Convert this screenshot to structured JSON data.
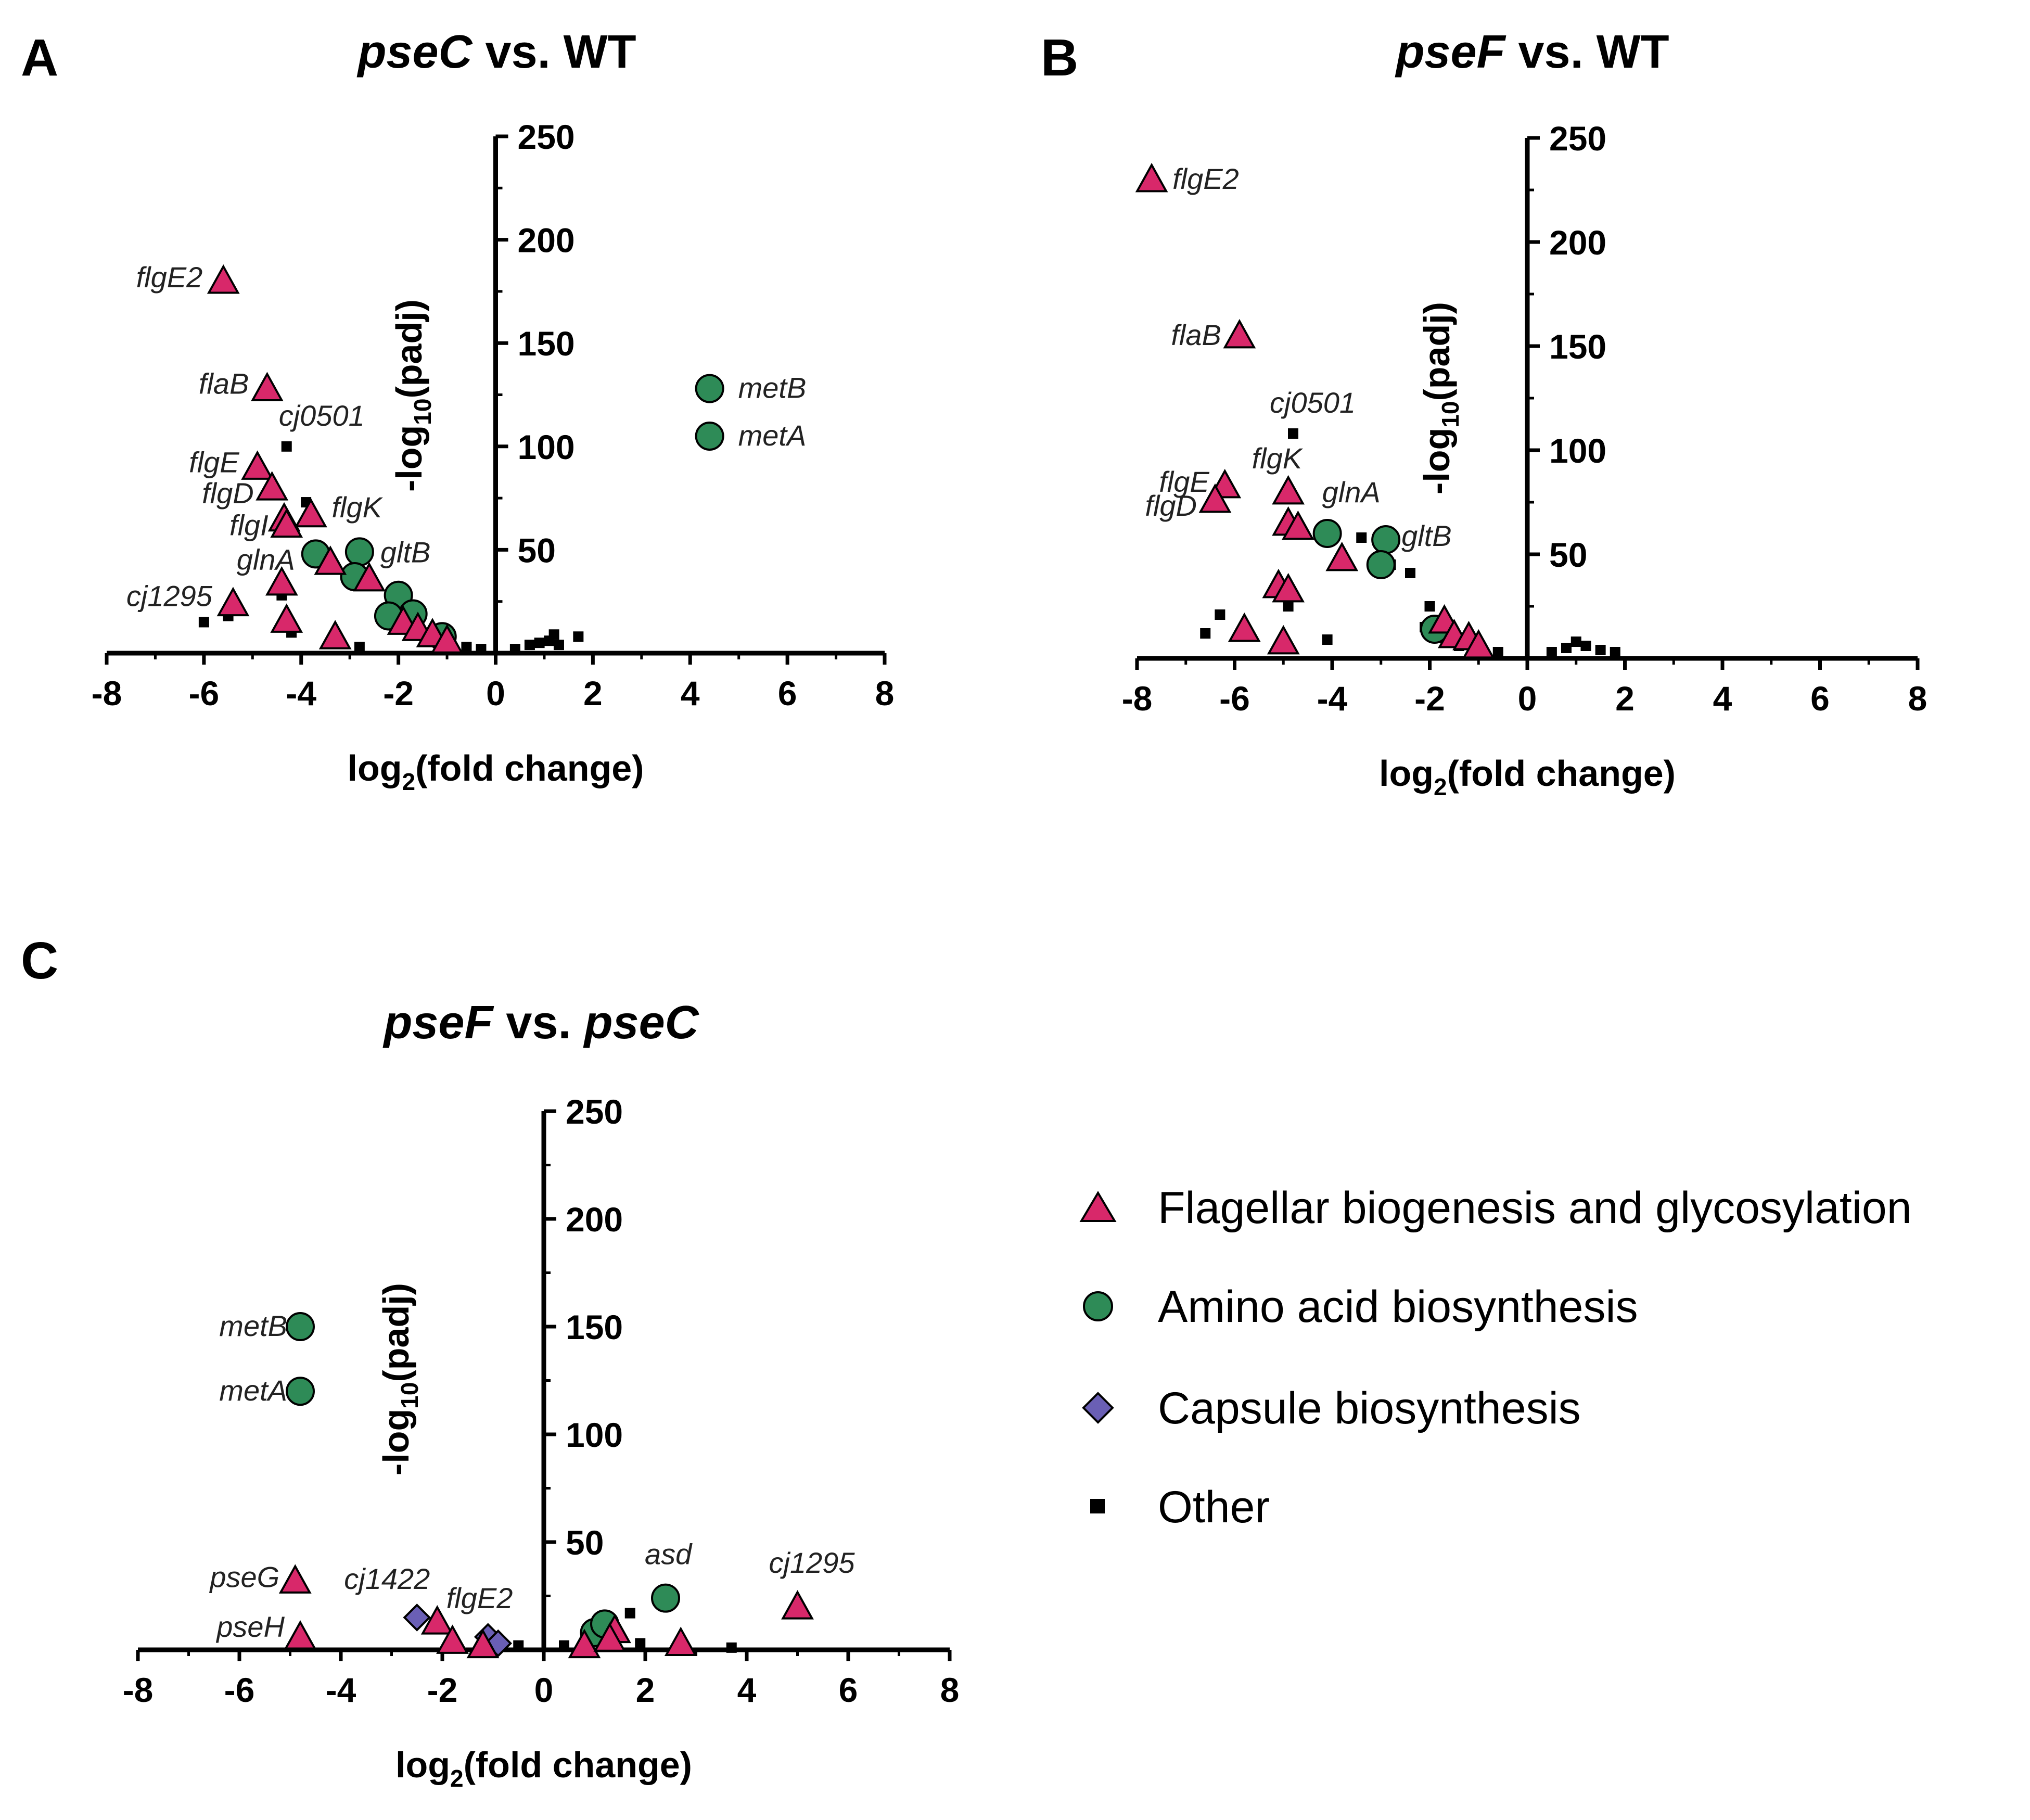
{
  "colors": {
    "flagellar": "#d8286a",
    "amino_acid": "#2e8b57",
    "capsule": "#6a5fb5",
    "other": "#000000"
  },
  "legend": {
    "items": [
      {
        "key": "flagellar",
        "label": "Flagellar biogenesis and glycosylation",
        "marker": "triangle"
      },
      {
        "key": "amino_acid",
        "label": "Amino acid biosynthesis",
        "marker": "circle"
      },
      {
        "key": "capsule",
        "label": "Capsule biosynthesis",
        "marker": "diamond"
      },
      {
        "key": "other",
        "label": "Other",
        "marker": "square"
      }
    ]
  },
  "chart_data": [
    {
      "type": "scatter",
      "panel": "A",
      "title_italic": "pseC",
      "title_rest": " vs. WT",
      "xlabel_main": "log",
      "xlabel_sub": "2",
      "xlabel_tail": "(fold change)",
      "ylabel_main": "-log",
      "ylabel_sub": "10",
      "ylabel_tail": "(padj)",
      "xlim": [
        -8,
        8
      ],
      "ylim": [
        0,
        250
      ],
      "xticks": [
        -8,
        -6,
        -4,
        -2,
        0,
        2,
        4,
        6,
        8
      ],
      "yticks": [
        50,
        100,
        150,
        200,
        250
      ],
      "points": [
        {
          "x": -5.6,
          "y": 180,
          "cat": "flagellar",
          "label": "flgE2"
        },
        {
          "x": -4.7,
          "y": 128,
          "cat": "flagellar",
          "label": "flaB"
        },
        {
          "x": -4.3,
          "y": 100,
          "cat": "other",
          "label": "cj0501"
        },
        {
          "x": -4.9,
          "y": 90,
          "cat": "flagellar",
          "label": "flgE"
        },
        {
          "x": -4.6,
          "y": 80,
          "cat": "flagellar",
          "label": "flgD"
        },
        {
          "x": -4.35,
          "y": 65,
          "cat": "flagellar"
        },
        {
          "x": -4.3,
          "y": 62,
          "cat": "flagellar",
          "label": "flgI"
        },
        {
          "x": -3.8,
          "y": 67,
          "cat": "flagellar",
          "label": "flgK"
        },
        {
          "x": -3.7,
          "y": 48,
          "cat": "amino_acid",
          "label": "glnA"
        },
        {
          "x": -3.4,
          "y": 44,
          "cat": "flagellar"
        },
        {
          "x": -2.8,
          "y": 49,
          "cat": "amino_acid",
          "label": "gltB"
        },
        {
          "x": -2.9,
          "y": 37,
          "cat": "amino_acid"
        },
        {
          "x": -2.6,
          "y": 36,
          "cat": "flagellar"
        },
        {
          "x": -2.0,
          "y": 28,
          "cat": "amino_acid"
        },
        {
          "x": -1.7,
          "y": 19,
          "cat": "amino_acid"
        },
        {
          "x": -2.2,
          "y": 18,
          "cat": "amino_acid"
        },
        {
          "x": -1.9,
          "y": 15,
          "cat": "flagellar"
        },
        {
          "x": -1.6,
          "y": 12,
          "cat": "flagellar"
        },
        {
          "x": -1.3,
          "y": 9,
          "cat": "flagellar"
        },
        {
          "x": -1.1,
          "y": 8,
          "cat": "amino_acid"
        },
        {
          "x": -1.0,
          "y": 6,
          "cat": "flagellar"
        },
        {
          "x": -5.4,
          "y": 24,
          "cat": "flagellar",
          "label": "cj1295"
        },
        {
          "x": -4.4,
          "y": 34,
          "cat": "flagellar"
        },
        {
          "x": -4.3,
          "y": 16,
          "cat": "flagellar"
        },
        {
          "x": -3.3,
          "y": 8,
          "cat": "flagellar"
        },
        {
          "x": -6.0,
          "y": 15,
          "cat": "other"
        },
        {
          "x": -5.5,
          "y": 18,
          "cat": "other"
        },
        {
          "x": -4.4,
          "y": 28,
          "cat": "other"
        },
        {
          "x": -4.2,
          "y": 10,
          "cat": "other"
        },
        {
          "x": -3.9,
          "y": 73,
          "cat": "other"
        },
        {
          "x": -2.8,
          "y": 3,
          "cat": "other"
        },
        {
          "x": -0.6,
          "y": 3,
          "cat": "other"
        },
        {
          "x": -0.3,
          "y": 2,
          "cat": "other"
        },
        {
          "x": 0.4,
          "y": 2,
          "cat": "other"
        },
        {
          "x": 0.7,
          "y": 4,
          "cat": "other"
        },
        {
          "x": 0.9,
          "y": 5,
          "cat": "other"
        },
        {
          "x": 1.1,
          "y": 6,
          "cat": "other"
        },
        {
          "x": 1.2,
          "y": 9,
          "cat": "other"
        },
        {
          "x": 1.3,
          "y": 4,
          "cat": "other"
        },
        {
          "x": 1.7,
          "y": 8,
          "cat": "other"
        },
        {
          "x": 4.4,
          "y": 128,
          "cat": "amino_acid",
          "label": "metB"
        },
        {
          "x": 4.4,
          "y": 105,
          "cat": "amino_acid",
          "label": "metA"
        }
      ]
    },
    {
      "type": "scatter",
      "panel": "B",
      "title_italic": "pseF",
      "title_rest": " vs. WT",
      "xlabel_main": "log",
      "xlabel_sub": "2",
      "xlabel_tail": "(fold change)",
      "ylabel_main": "-log",
      "ylabel_sub": "10",
      "ylabel_tail": "(padj)",
      "xlim": [
        -8,
        8
      ],
      "ylim": [
        0,
        250
      ],
      "xticks": [
        -8,
        -6,
        -4,
        -2,
        0,
        2,
        4,
        6,
        8
      ],
      "yticks": [
        50,
        100,
        150,
        200,
        250
      ],
      "points": [
        {
          "x": -7.7,
          "y": 230,
          "cat": "flagellar",
          "label": "flgE2"
        },
        {
          "x": -5.9,
          "y": 155,
          "cat": "flagellar",
          "label": "flaB"
        },
        {
          "x": -4.8,
          "y": 108,
          "cat": "other",
          "label": "cj0501"
        },
        {
          "x": -6.2,
          "y": 83,
          "cat": "flagellar",
          "label": "flgE"
        },
        {
          "x": -6.4,
          "y": 76,
          "cat": "flagellar",
          "label": "flgD"
        },
        {
          "x": -4.9,
          "y": 80,
          "cat": "flagellar",
          "label": "flgK"
        },
        {
          "x": -4.9,
          "y": 65,
          "cat": "flagellar"
        },
        {
          "x": -4.7,
          "y": 63,
          "cat": "flagellar"
        },
        {
          "x": -4.1,
          "y": 60,
          "cat": "amino_acid",
          "label": "glnA"
        },
        {
          "x": -3.8,
          "y": 48,
          "cat": "flagellar"
        },
        {
          "x": -2.9,
          "y": 57,
          "cat": "amino_acid",
          "label": "gltB"
        },
        {
          "x": -3.0,
          "y": 45,
          "cat": "amino_acid"
        },
        {
          "x": -5.1,
          "y": 35,
          "cat": "flagellar"
        },
        {
          "x": -4.9,
          "y": 33,
          "cat": "flagellar"
        },
        {
          "x": -5.8,
          "y": 14,
          "cat": "flagellar"
        },
        {
          "x": -5.0,
          "y": 8,
          "cat": "flagellar"
        },
        {
          "x": -6.6,
          "y": 12,
          "cat": "other"
        },
        {
          "x": -6.3,
          "y": 21,
          "cat": "other"
        },
        {
          "x": -4.9,
          "y": 25,
          "cat": "other"
        },
        {
          "x": -4.1,
          "y": 9,
          "cat": "other"
        },
        {
          "x": -3.4,
          "y": 58,
          "cat": "other"
        },
        {
          "x": -2.8,
          "y": 45,
          "cat": "other"
        },
        {
          "x": -2.4,
          "y": 41,
          "cat": "other"
        },
        {
          "x": -2.0,
          "y": 25,
          "cat": "other"
        },
        {
          "x": -2.1,
          "y": 15,
          "cat": "other"
        },
        {
          "x": -1.8,
          "y": 10,
          "cat": "other"
        },
        {
          "x": -1.9,
          "y": 14,
          "cat": "amino_acid"
        },
        {
          "x": -1.7,
          "y": 18,
          "cat": "flagellar"
        },
        {
          "x": -1.5,
          "y": 11,
          "cat": "flagellar"
        },
        {
          "x": -1.2,
          "y": 10,
          "cat": "flagellar"
        },
        {
          "x": -1.0,
          "y": 6,
          "cat": "flagellar"
        },
        {
          "x": -1.4,
          "y": 6,
          "cat": "other"
        },
        {
          "x": -0.6,
          "y": 3,
          "cat": "other"
        },
        {
          "x": 0.5,
          "y": 3,
          "cat": "other"
        },
        {
          "x": 0.8,
          "y": 5,
          "cat": "other"
        },
        {
          "x": 1.0,
          "y": 8,
          "cat": "other"
        },
        {
          "x": 1.2,
          "y": 6,
          "cat": "other"
        },
        {
          "x": 1.5,
          "y": 4,
          "cat": "other"
        },
        {
          "x": 1.8,
          "y": 3,
          "cat": "other"
        }
      ]
    },
    {
      "type": "scatter",
      "panel": "C",
      "title_italic": "pseF",
      "title_rest": " vs. ",
      "title_italic2": "pseC",
      "xlabel_main": "log",
      "xlabel_sub": "2",
      "xlabel_tail": "(fold change)",
      "ylabel_main": "-log",
      "ylabel_sub": "10",
      "ylabel_tail": "(padj)",
      "xlim": [
        -8,
        8
      ],
      "ylim": [
        0,
        250
      ],
      "xticks": [
        -8,
        -6,
        -4,
        -2,
        0,
        2,
        4,
        6,
        8
      ],
      "yticks": [
        50,
        100,
        150,
        200,
        250
      ],
      "points": [
        {
          "x": -4.8,
          "y": 150,
          "cat": "amino_acid",
          "label": "metB"
        },
        {
          "x": -4.8,
          "y": 120,
          "cat": "amino_acid",
          "label": "metA"
        },
        {
          "x": -4.9,
          "y": 32,
          "cat": "flagellar",
          "label": "pseG"
        },
        {
          "x": -4.8,
          "y": 6,
          "cat": "flagellar",
          "label": "pseH"
        },
        {
          "x": -2.5,
          "y": 15,
          "cat": "capsule",
          "label": "cj1422"
        },
        {
          "x": -2.1,
          "y": 13,
          "cat": "flagellar"
        },
        {
          "x": -1.8,
          "y": 4,
          "cat": "flagellar"
        },
        {
          "x": -1.2,
          "y": 2,
          "cat": "flagellar"
        },
        {
          "x": -1.1,
          "y": 6,
          "cat": "capsule",
          "label": "flgE2"
        },
        {
          "x": -0.9,
          "y": 3,
          "cat": "capsule"
        },
        {
          "x": -0.5,
          "y": 2,
          "cat": "other"
        },
        {
          "x": 0.4,
          "y": 2,
          "cat": "other"
        },
        {
          "x": 0.8,
          "y": 2,
          "cat": "flagellar"
        },
        {
          "x": 1.0,
          "y": 8,
          "cat": "amino_acid"
        },
        {
          "x": 1.2,
          "y": 12,
          "cat": "amino_acid"
        },
        {
          "x": 1.4,
          "y": 9,
          "cat": "flagellar"
        },
        {
          "x": 1.3,
          "y": 5,
          "cat": "flagellar"
        },
        {
          "x": 1.7,
          "y": 17,
          "cat": "other"
        },
        {
          "x": 1.9,
          "y": 3,
          "cat": "other"
        },
        {
          "x": 2.4,
          "y": 24,
          "cat": "amino_acid",
          "label": "asd"
        },
        {
          "x": 2.7,
          "y": 3,
          "cat": "flagellar"
        },
        {
          "x": 3.7,
          "y": 1,
          "cat": "other"
        },
        {
          "x": 5.0,
          "y": 20,
          "cat": "flagellar",
          "label": "cj1295"
        }
      ]
    }
  ]
}
